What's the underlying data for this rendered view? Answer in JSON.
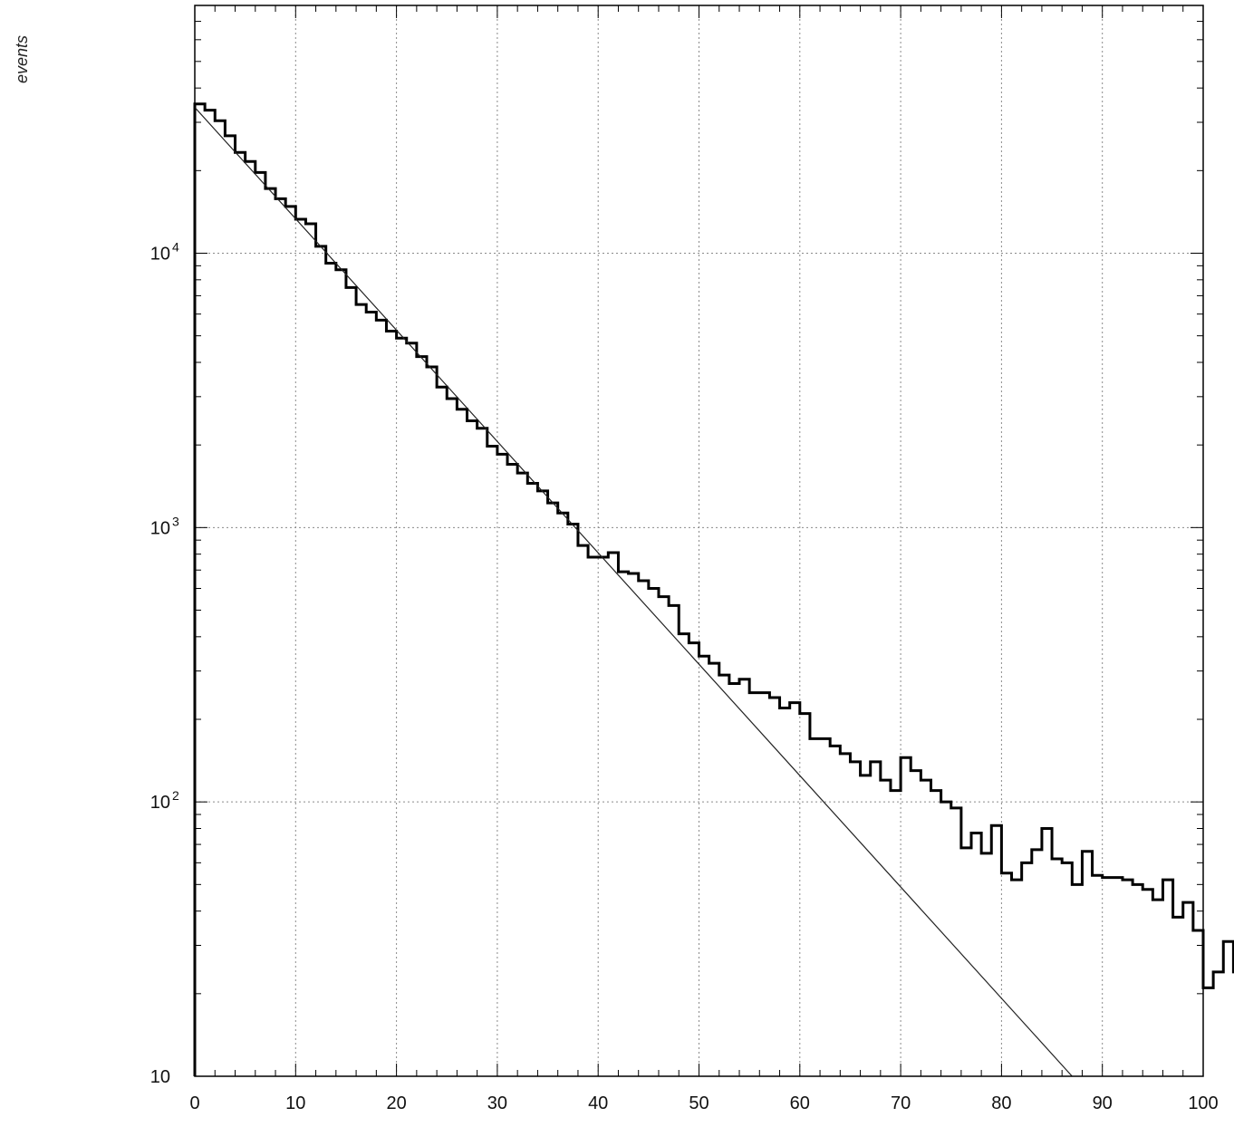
{
  "chart_data": {
    "type": "histogram",
    "title": "",
    "ylabel": "events",
    "xlabel": "",
    "y_scale": "log",
    "grid": true,
    "xlim": [
      0,
      100
    ],
    "ylim": [
      10,
      80000
    ],
    "x_ticks": [
      "0",
      "10",
      "20",
      "30",
      "40",
      "50",
      "60",
      "70",
      "80",
      "90",
      "100"
    ],
    "y_ticks": [
      {
        "base": "10",
        "exp": "4",
        "value": 10000
      },
      {
        "base": "10",
        "exp": "3",
        "value": 1000
      },
      {
        "base": "10",
        "exp": "2",
        "value": 100
      },
      {
        "base": "10",
        "exp": "",
        "value": 10
      }
    ],
    "series": [
      {
        "type": "step-histogram",
        "bin_width": 1,
        "x_start": 0,
        "values": [
          35000,
          33200,
          30400,
          26800,
          23300,
          21600,
          19700,
          17200,
          15800,
          14800,
          13300,
          12800,
          10600,
          9200,
          8700,
          7500,
          6500,
          6100,
          5700,
          5200,
          4900,
          4700,
          4200,
          3850,
          3250,
          2950,
          2700,
          2450,
          2300,
          1980,
          1850,
          1700,
          1580,
          1450,
          1360,
          1230,
          1130,
          1030,
          860,
          780,
          780,
          810,
          690,
          680,
          640,
          600,
          560,
          520,
          410,
          380,
          340,
          320,
          290,
          270,
          280,
          250,
          250,
          240,
          220,
          230,
          210,
          170,
          170,
          160,
          150,
          140,
          125,
          140,
          120,
          110,
          145,
          130,
          120,
          110,
          100,
          95,
          68,
          77,
          65,
          82,
          55,
          52,
          60,
          67,
          80,
          62,
          60,
          50,
          66,
          54,
          53,
          53,
          52,
          50,
          48,
          44,
          52,
          38,
          43,
          34,
          21,
          24,
          31,
          24
        ]
      },
      {
        "type": "fit-line",
        "x": [
          0,
          87
        ],
        "y": [
          34000,
          10
        ]
      }
    ]
  }
}
